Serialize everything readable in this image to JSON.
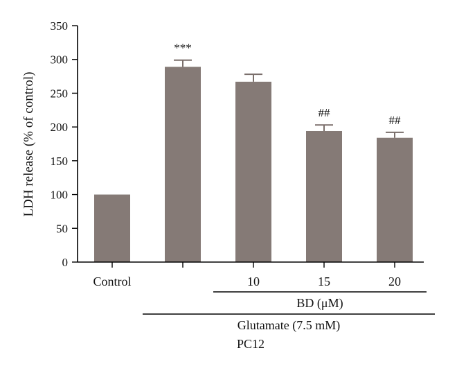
{
  "chart_data": {
    "type": "bar",
    "categories": [
      "Control",
      "",
      "10",
      "15",
      "20"
    ],
    "values": [
      100,
      289,
      267,
      194,
      184
    ],
    "errors": [
      0,
      10,
      11,
      9,
      8
    ],
    "annotations": [
      "",
      "***",
      "",
      "##",
      "##"
    ],
    "ylabel": "LDH release (% of control)",
    "xlabel": "",
    "ylim": [
      0,
      350
    ],
    "yticks": [
      0,
      50,
      100,
      150,
      200,
      250,
      300,
      350
    ],
    "bar_color": "#857a76",
    "groups": [
      {
        "label": "BD (μM)",
        "from": 2,
        "to": 4
      },
      {
        "label": "Glutamate (7.5 mM)",
        "from": 1,
        "to": 4
      }
    ],
    "panel_label": "PC12",
    "grid": false
  }
}
